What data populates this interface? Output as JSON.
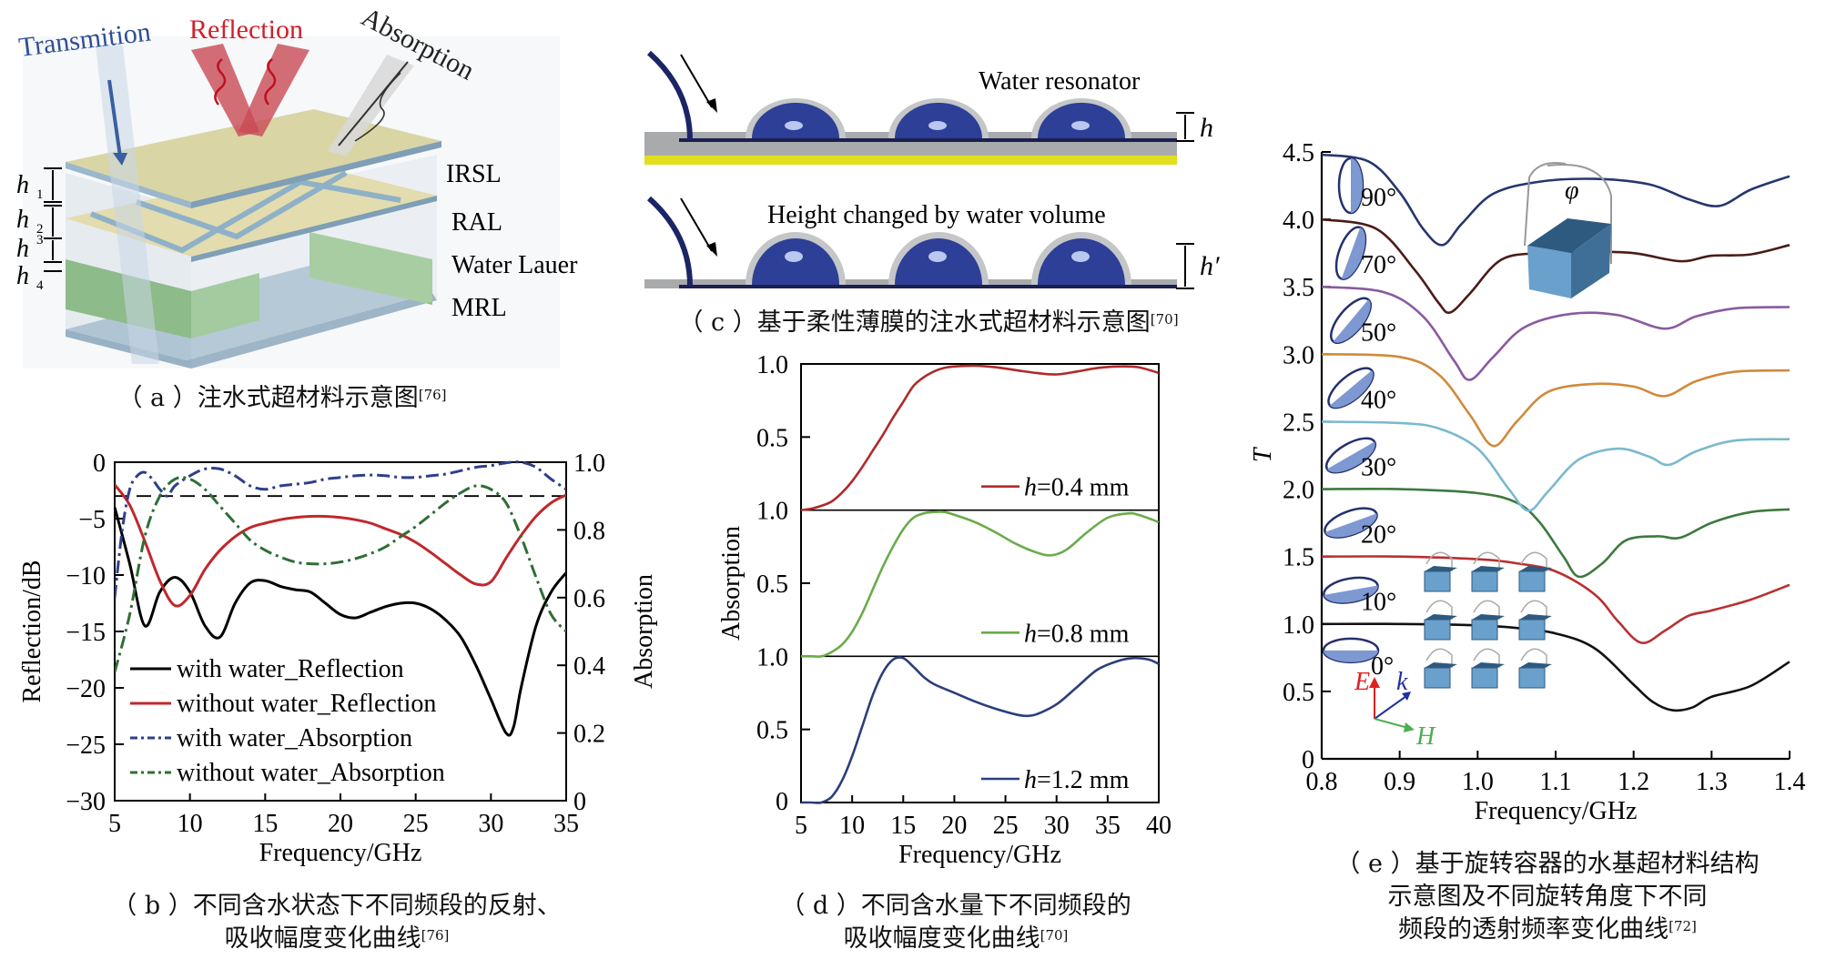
{
  "panel_a": {
    "caption_letter": "（ a ）",
    "caption": "注水式超材料示意图",
    "ref": "[76]",
    "labels": {
      "transmission": "Transmition",
      "reflection": "Reflection",
      "absorption": "Absorption"
    },
    "layers": [
      "IRSL",
      "RAL",
      "Water Lauer",
      "MRL"
    ],
    "heights": [
      "h1",
      "h2",
      "h3",
      "h4"
    ],
    "colors": {
      "transmission": "#2f4f93",
      "reflection": "#d0202a",
      "absorption": "#222222"
    }
  },
  "panel_c": {
    "caption_letter": "（ c ）",
    "caption": "基于柔性薄膜的注水式超材料示意图",
    "ref": "[70]",
    "top_label": "Water resonator",
    "bottom_label": "Height changed by water volume",
    "h_label": "h",
    "h2_label": "h′"
  },
  "panel_e_extra": {
    "phi": "φ",
    "E": "E",
    "k": "k",
    "H": "H",
    "angle_labels": [
      "90°",
      "70°",
      "50°",
      "40°",
      "30°",
      "20°",
      "10°",
      "0°"
    ]
  },
  "chart_data": [
    {
      "id": "b",
      "type": "line",
      "title": "",
      "caption_letter": "（ b ）",
      "caption_line1": "不同含水状态下不同频段的反射、",
      "caption_line2": "吸收幅度变化曲线",
      "ref": "[76]",
      "xlabel": "Frequency/GHz",
      "ylabel": "Reflection/dB",
      "y2label": "Absorption",
      "xlim": [
        5,
        35
      ],
      "ylim": [
        -30,
        0
      ],
      "y2lim": [
        0,
        1.0
      ],
      "xticks": [
        "5",
        "10",
        "15",
        "20",
        "25",
        "30",
        "35"
      ],
      "yticks": [
        "0",
        "−5",
        "−10",
        "−15",
        "−20",
        "−25",
        "−30"
      ],
      "y2ticks": [
        "1.0",
        "0.8",
        "0.6",
        "0.4",
        "0.2",
        "0"
      ],
      "reference_line": {
        "axis": "y",
        "value": -3,
        "style": "dashed"
      },
      "legend_position": "bottom-left",
      "series": [
        {
          "name": "with water_Reflection",
          "axis": "left",
          "color": "#000000",
          "style": "solid",
          "x": [
            5,
            6,
            7,
            8,
            9,
            10,
            11,
            12,
            13,
            14,
            15,
            16,
            17,
            18,
            19,
            20,
            21,
            22,
            23,
            24,
            25,
            26,
            27,
            28,
            29,
            30,
            31,
            31.5,
            32,
            33,
            34,
            35
          ],
          "y": [
            -4,
            -9,
            -14.5,
            -11.5,
            -10.2,
            -11.5,
            -14.5,
            -15.5,
            -12.5,
            -10.7,
            -10.5,
            -11,
            -11.3,
            -11.5,
            -12.5,
            -13.5,
            -13.8,
            -13.3,
            -12.8,
            -12.5,
            -12.5,
            -13,
            -14,
            -15.5,
            -18,
            -21,
            -24,
            -23.5,
            -20,
            -14.5,
            -11.5,
            -9.8
          ]
        },
        {
          "name": "without water_Reflection",
          "axis": "left",
          "color": "#c0282c",
          "style": "solid",
          "x": [
            5,
            6,
            7,
            8,
            9,
            10,
            11,
            12,
            13,
            14,
            15,
            16,
            17,
            18,
            19,
            20,
            21,
            22,
            23,
            24,
            25,
            26,
            27,
            28,
            29,
            30,
            31,
            32,
            33,
            34,
            35
          ],
          "y": [
            -2,
            -3.8,
            -7,
            -10.5,
            -12.7,
            -11.8,
            -9.5,
            -7.8,
            -6.6,
            -5.8,
            -5.4,
            -5.1,
            -4.9,
            -4.8,
            -4.8,
            -4.9,
            -5.1,
            -5.4,
            -5.9,
            -6.4,
            -7.1,
            -8,
            -9,
            -10,
            -10.8,
            -10.6,
            -8.5,
            -6.5,
            -4.8,
            -3.6,
            -2.9
          ]
        },
        {
          "name": "with water_Absorption",
          "axis": "right",
          "color": "#2e3f8a",
          "style": "dashdot",
          "x": [
            5,
            5.5,
            6,
            6.5,
            7,
            7.5,
            8,
            8.5,
            9,
            10,
            11,
            12,
            13,
            14,
            15,
            16,
            17,
            18,
            19,
            20,
            21,
            22,
            23,
            24,
            25,
            26,
            27,
            28,
            29,
            30,
            31,
            32,
            33,
            34,
            35
          ],
          "y": [
            0.6,
            0.8,
            0.92,
            0.96,
            0.97,
            0.95,
            0.92,
            0.9,
            0.93,
            0.96,
            0.98,
            0.98,
            0.96,
            0.93,
            0.92,
            0.93,
            0.935,
            0.94,
            0.95,
            0.955,
            0.96,
            0.962,
            0.96,
            0.955,
            0.955,
            0.96,
            0.965,
            0.975,
            0.985,
            0.99,
            0.998,
            1.0,
            0.985,
            0.95,
            0.92
          ]
        },
        {
          "name": "without water_Absorption",
          "axis": "right",
          "color": "#2e6e35",
          "style": "dashdot",
          "x": [
            5,
            6,
            7,
            8,
            9,
            10,
            11,
            12,
            13,
            14,
            15,
            16,
            17,
            18,
            19,
            20,
            21,
            22,
            23,
            24,
            25,
            26,
            27,
            28,
            29,
            30,
            31,
            32,
            33,
            34,
            35
          ],
          "y": [
            0.38,
            0.55,
            0.78,
            0.9,
            0.95,
            0.95,
            0.92,
            0.87,
            0.82,
            0.77,
            0.74,
            0.72,
            0.705,
            0.7,
            0.7,
            0.705,
            0.715,
            0.73,
            0.75,
            0.78,
            0.81,
            0.845,
            0.88,
            0.91,
            0.93,
            0.92,
            0.88,
            0.78,
            0.66,
            0.55,
            0.5
          ]
        }
      ]
    },
    {
      "id": "d",
      "type": "line",
      "caption_letter": "（ d ）",
      "caption_line1": "不同含水量下不同频段的",
      "caption_line2": "吸收幅度变化曲线",
      "ref": "[70]",
      "xlabel": "Frequency/GHz",
      "ylabel": "Absorption",
      "xlim": [
        5,
        40
      ],
      "ylim": [
        0,
        1.0
      ],
      "xticks": [
        "5",
        "10",
        "15",
        "20",
        "25",
        "30",
        "35",
        "40"
      ],
      "panel_yticks": [
        "1.0",
        "0.5"
      ],
      "bottom_ytick": "0",
      "layout": "three stacked sub-panels sharing x-axis",
      "series": [
        {
          "name": "h=0.4 mm",
          "legend_prefix": "h",
          "legend_suffix": "=0.4 mm",
          "color": "#b02a2a",
          "x": [
            5,
            6,
            7,
            8,
            9,
            10,
            11,
            12,
            13,
            14,
            15,
            16,
            17,
            18,
            19,
            20,
            22,
            24,
            26,
            28,
            30,
            32,
            34,
            36,
            38,
            40
          ],
          "y": [
            0.0,
            0.01,
            0.03,
            0.06,
            0.12,
            0.2,
            0.3,
            0.41,
            0.52,
            0.64,
            0.75,
            0.86,
            0.92,
            0.96,
            0.985,
            0.995,
            1.0,
            0.99,
            0.97,
            0.95,
            0.94,
            0.96,
            0.985,
            0.995,
            0.99,
            0.95
          ]
        },
        {
          "name": "h=0.8 mm",
          "legend_prefix": "h",
          "legend_suffix": "=0.8 mm",
          "color": "#6aab4a",
          "x": [
            5,
            6,
            7,
            8,
            9,
            10,
            11,
            12,
            13,
            14,
            15,
            16,
            17,
            18,
            19,
            20,
            22,
            24,
            26,
            28,
            29.5,
            31,
            33,
            35,
            37,
            38,
            40
          ],
          "y": [
            0.0,
            0.0,
            0.0,
            0.03,
            0.08,
            0.17,
            0.3,
            0.46,
            0.62,
            0.76,
            0.88,
            0.96,
            0.99,
            1.0,
            1.0,
            0.98,
            0.93,
            0.86,
            0.78,
            0.72,
            0.7,
            0.74,
            0.86,
            0.96,
            0.99,
            0.98,
            0.93
          ]
        },
        {
          "name": "h=1.2 mm",
          "legend_prefix": "h",
          "legend_suffix": "=1.2 mm",
          "color": "#2b3e7c",
          "x": [
            5,
            6,
            7,
            8,
            9,
            10,
            11,
            12,
            13,
            14,
            15,
            16,
            17,
            18,
            20,
            22,
            24,
            26,
            27,
            28,
            30,
            32,
            34,
            36,
            37.5,
            39,
            40
          ],
          "y": [
            0.0,
            0.0,
            0.0,
            0.04,
            0.15,
            0.32,
            0.53,
            0.74,
            0.9,
            0.99,
            1.0,
            0.94,
            0.87,
            0.82,
            0.76,
            0.7,
            0.65,
            0.61,
            0.6,
            0.61,
            0.68,
            0.8,
            0.92,
            0.98,
            1.0,
            0.99,
            0.96
          ]
        }
      ]
    },
    {
      "id": "e",
      "type": "line",
      "caption_letter": "（ e ）",
      "caption_line1": "基于旋转容器的水基超材料结构",
      "caption_line2": "示意图及不同旋转角度下不同",
      "caption_line3": "频段的透射频率变化曲线",
      "ref": "[72]",
      "xlabel": "Frequency/GHz",
      "ylabel": "T",
      "xlim": [
        0.8,
        1.4
      ],
      "ylim": [
        0,
        4.5
      ],
      "xticks": [
        "0.8",
        "0.9",
        "1.0",
        "1.1",
        "1.2",
        "1.3",
        "1.4"
      ],
      "yticks": [
        "0",
        "0.5",
        "1.0",
        "1.5",
        "2.0",
        "2.5",
        "3.0",
        "3.5",
        "4.0",
        "4.5"
      ],
      "note": "curves vertically offset by 0.5 per rotation angle",
      "series": [
        {
          "name": "0°",
          "color": "#111111",
          "x": [
            0.8,
            0.9,
            1.0,
            1.05,
            1.1,
            1.15,
            1.2,
            1.225,
            1.25,
            1.275,
            1.3,
            1.35,
            1.4
          ],
          "y": [
            1.0,
            1.0,
            0.99,
            0.97,
            0.93,
            0.82,
            0.55,
            0.42,
            0.36,
            0.38,
            0.46,
            0.54,
            0.72
          ]
        },
        {
          "name": "10°",
          "color": "#b83030",
          "x": [
            0.8,
            0.9,
            1.0,
            1.05,
            1.1,
            1.15,
            1.18,
            1.21,
            1.24,
            1.27,
            1.3,
            1.35,
            1.4
          ],
          "y": [
            1.5,
            1.5,
            1.48,
            1.45,
            1.39,
            1.22,
            1.02,
            0.86,
            0.95,
            1.06,
            1.1,
            1.18,
            1.29
          ]
        },
        {
          "name": "20°",
          "color": "#3d7a3f",
          "x": [
            0.8,
            0.9,
            1.0,
            1.05,
            1.08,
            1.11,
            1.13,
            1.16,
            1.19,
            1.23,
            1.26,
            1.3,
            1.35,
            1.4
          ],
          "y": [
            2.0,
            2.0,
            1.97,
            1.9,
            1.75,
            1.5,
            1.35,
            1.45,
            1.62,
            1.65,
            1.64,
            1.75,
            1.83,
            1.85
          ]
        },
        {
          "name": "30°",
          "color": "#7ab9cd",
          "x": [
            0.8,
            0.9,
            0.95,
            1.0,
            1.04,
            1.065,
            1.09,
            1.13,
            1.18,
            1.22,
            1.245,
            1.28,
            1.33,
            1.4
          ],
          "y": [
            2.5,
            2.49,
            2.45,
            2.3,
            2.0,
            1.84,
            1.98,
            2.22,
            2.3,
            2.24,
            2.18,
            2.28,
            2.36,
            2.37
          ]
        },
        {
          "name": "40°",
          "color": "#d08a3c",
          "x": [
            0.8,
            0.9,
            0.95,
            0.99,
            1.02,
            1.05,
            1.09,
            1.15,
            1.2,
            1.24,
            1.28,
            1.33,
            1.4
          ],
          "y": [
            3.0,
            2.98,
            2.85,
            2.55,
            2.32,
            2.5,
            2.72,
            2.78,
            2.76,
            2.69,
            2.8,
            2.87,
            2.88
          ]
        },
        {
          "name": "50°",
          "color": "#8a5a9e",
          "x": [
            0.8,
            0.88,
            0.93,
            0.97,
            0.99,
            1.02,
            1.06,
            1.12,
            1.18,
            1.24,
            1.28,
            1.33,
            1.4
          ],
          "y": [
            3.5,
            3.46,
            3.28,
            2.95,
            2.81,
            2.98,
            3.2,
            3.3,
            3.29,
            3.19,
            3.28,
            3.34,
            3.35
          ]
        },
        {
          "name": "70°",
          "color": "#4a1c16",
          "x": [
            0.8,
            0.87,
            0.92,
            0.95,
            0.965,
            0.99,
            1.03,
            1.08,
            1.14,
            1.2,
            1.26,
            1.3,
            1.35,
            1.4
          ],
          "y": [
            4.0,
            3.93,
            3.62,
            3.38,
            3.31,
            3.45,
            3.7,
            3.75,
            3.76,
            3.75,
            3.69,
            3.73,
            3.74,
            3.81
          ]
        },
        {
          "name": "90°",
          "color": "#26376e",
          "x": [
            0.8,
            0.86,
            0.9,
            0.93,
            0.955,
            0.98,
            1.02,
            1.08,
            1.15,
            1.22,
            1.27,
            1.31,
            1.35,
            1.4
          ],
          "y": [
            4.48,
            4.43,
            4.2,
            3.93,
            3.81,
            3.97,
            4.19,
            4.28,
            4.3,
            4.26,
            4.15,
            4.1,
            4.22,
            4.32
          ]
        }
      ]
    }
  ]
}
